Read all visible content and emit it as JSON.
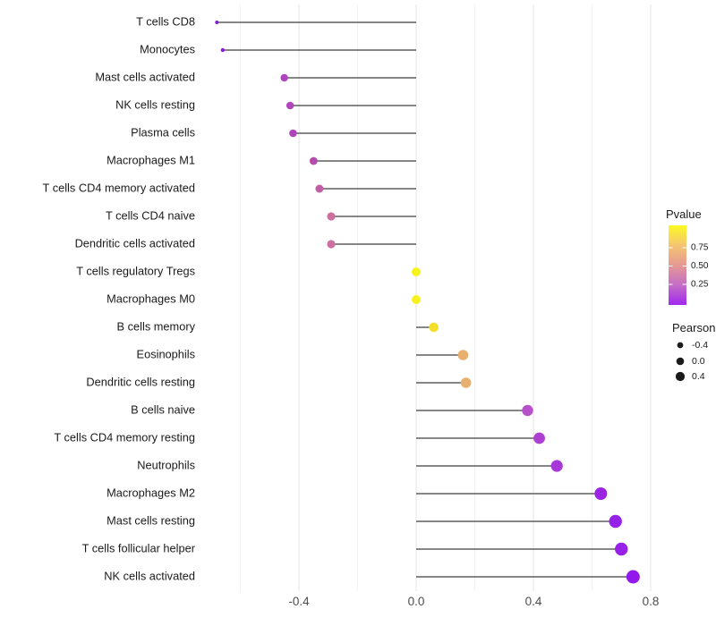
{
  "chart_data": {
    "type": "scatter",
    "style": "horizontal-lollipop",
    "title": "",
    "xlabel": "",
    "ylabel": "",
    "grid": "vertical-only",
    "xlim": [
      -0.74,
      0.81
    ],
    "x_ticks": [
      -0.4,
      0.0,
      0.4,
      0.8
    ],
    "x_tick_labels": [
      "-0.4",
      "0.0",
      "0.4",
      "0.8"
    ],
    "x_minor_gridlines": [
      -0.6,
      -0.2,
      0.2,
      0.6
    ],
    "baseline_x": 0.0,
    "points": [
      {
        "label": "T cells CD8",
        "pearson": -0.68,
        "dot_color": "#8A15DE",
        "dot_radius": 2.0
      },
      {
        "label": "Monocytes",
        "pearson": -0.66,
        "dot_color": "#8C17E0",
        "dot_radius": 2.2
      },
      {
        "label": "Mast cells activated",
        "pearson": -0.45,
        "dot_color": "#AF45BD",
        "dot_radius": 4.2
      },
      {
        "label": "NK cells resting",
        "pearson": -0.43,
        "dot_color": "#B047BD",
        "dot_radius": 4.3
      },
      {
        "label": "Plasma cells",
        "pearson": -0.42,
        "dot_color": "#AE44BB",
        "dot_radius": 4.3
      },
      {
        "label": "Macrophages M1",
        "pearson": -0.35,
        "dot_color": "#B34CAC",
        "dot_radius": 4.4
      },
      {
        "label": "T cells CD4 memory activated",
        "pearson": -0.33,
        "dot_color": "#C05FA3",
        "dot_radius": 4.5
      },
      {
        "label": "T cells CD4 naive",
        "pearson": -0.29,
        "dot_color": "#CB709F",
        "dot_radius": 4.6
      },
      {
        "label": "Dendritic cells activated",
        "pearson": -0.29,
        "dot_color": "#CB709F",
        "dot_radius": 4.6
      },
      {
        "label": "T cells regulatory  Tregs",
        "pearson": 0.0,
        "dot_color": "#F8F120",
        "dot_radius": 5.0
      },
      {
        "label": "Macrophages M0",
        "pearson": 0.0,
        "dot_color": "#F8F120",
        "dot_radius": 5.0
      },
      {
        "label": "B cells memory",
        "pearson": 0.06,
        "dot_color": "#F3DF2B",
        "dot_radius": 5.3
      },
      {
        "label": "Eosinophils",
        "pearson": 0.16,
        "dot_color": "#E7B06E",
        "dot_radius": 5.8
      },
      {
        "label": "Dendritic cells resting",
        "pearson": 0.17,
        "dot_color": "#E7B06E",
        "dot_radius": 5.8
      },
      {
        "label": "B cells naive",
        "pearson": 0.38,
        "dot_color": "#B750C9",
        "dot_radius": 6.2
      },
      {
        "label": "T cells CD4 memory resting",
        "pearson": 0.42,
        "dot_color": "#AD40D3",
        "dot_radius": 6.4
      },
      {
        "label": "Neutrophils",
        "pearson": 0.48,
        "dot_color": "#A737DA",
        "dot_radius": 6.6
      },
      {
        "label": "Macrophages M2",
        "pearson": 0.63,
        "dot_color": "#9B24E2",
        "dot_radius": 7.0
      },
      {
        "label": "Mast cells resting",
        "pearson": 0.68,
        "dot_color": "#9721E6",
        "dot_radius": 7.2
      },
      {
        "label": "T cells follicular helper",
        "pearson": 0.7,
        "dot_color": "#9721E6",
        "dot_radius": 7.2
      },
      {
        "label": "NK cells activated",
        "pearson": 0.74,
        "dot_color": "#9219EA",
        "dot_radius": 7.5
      }
    ],
    "legends": {
      "pvalue": {
        "title": "Pvalue",
        "tick_labels": [
          "0.75",
          "0.50",
          "0.25"
        ],
        "gradient_top_to_bottom": [
          "#FCF922",
          "#F4C571",
          "#E69993",
          "#C46DC6",
          "#A228EF"
        ]
      },
      "pearson": {
        "title": "Pearson",
        "entries": [
          {
            "label": "-0.4",
            "radius": 3.4
          },
          {
            "label": "0.0",
            "radius": 4.3
          },
          {
            "label": "0.4",
            "radius": 5.1
          }
        ],
        "dot_color": "#1A1A1A"
      }
    },
    "colors": {
      "background": "#FFFFFF",
      "stem": "#3F3F3F",
      "grid_major": "#E7E7E7",
      "grid_minor": "#F2F2F2",
      "axis_tick_text": "#4D4D4D",
      "category_label_text": "#1A1A1A",
      "legend_text": "#1A1A1A"
    }
  }
}
